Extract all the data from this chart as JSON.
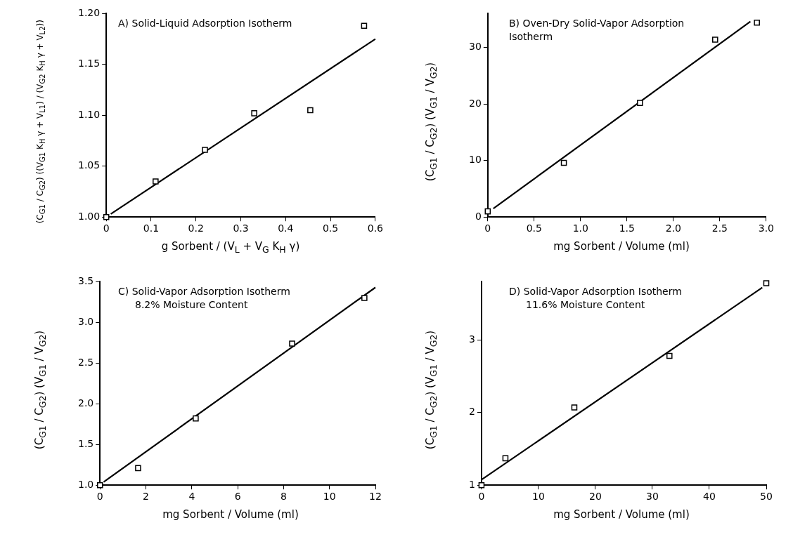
{
  "chart_data": [
    {
      "type": "scatter",
      "title": "A) Solid-Liquid Adsorption Isotherm",
      "xlabel": "g Sorbent / (V$_{L}$ + V$_{G}$ K$_{H}$ γ)",
      "ylabel": "(C$_{G1}$ / C$_{G2}$) ((V$_{G1}$ K$_{H}$ γ + V$_{L1}$) / (V$_{G2}$ K$_{H}$ γ + V$_{L2}$))",
      "xlim": [
        0,
        0.6
      ],
      "xticks": [
        0,
        0.1,
        0.2,
        0.3,
        0.4,
        0.5,
        0.6
      ],
      "ylim": [
        1,
        1.2
      ],
      "yticks": [
        {
          "value": 1,
          "label": "1.00"
        },
        {
          "value": 1.05,
          "label": "1.05"
        },
        {
          "value": 1.1,
          "label": "1.10"
        },
        {
          "value": 1.15,
          "label": "1.15"
        },
        {
          "value": 1.2,
          "label": "1.20"
        }
      ],
      "grid": false,
      "marker": "square",
      "line_style": "solid",
      "series": [
        {
          "type": "scatter",
          "color": "#000000",
          "x": [
            0,
            0.11,
            0.22,
            0.33,
            0.455,
            0.575
          ],
          "values": [
            1.0,
            1.035,
            1.066,
            1.102,
            1.105,
            1.188
          ]
        },
        {
          "type": "line",
          "color": "#000000",
          "marker": "none",
          "x": [
            0.01,
            0.6
          ],
          "values": [
            1.003,
            1.175
          ]
        }
      ]
    },
    {
      "type": "scatter",
      "title": "B) Oven-Dry Solid-Vapor Adsorption Isotherm",
      "xlabel": "mg Sorbent / Volume (ml)",
      "ylabel": "(C$_{G1}$ / C$_{G2}$) (V$_{G1}$ / V$_{G2}$)",
      "xlim": [
        0,
        3
      ],
      "xticks": [
        0,
        0.5,
        {
          "value": 1,
          "label": "1.0"
        },
        1.5,
        {
          "value": 2,
          "label": "2.0"
        },
        2.5,
        {
          "value": 3,
          "label": "3.0"
        }
      ],
      "ylim": [
        0,
        36
      ],
      "yticks": [
        0,
        10,
        20,
        30
      ],
      "grid": false,
      "marker": "square",
      "line_style": "solid",
      "series": [
        {
          "type": "scatter",
          "color": "#000000",
          "x": [
            0,
            0.82,
            1.64,
            2.45,
            2.9
          ],
          "values": [
            1,
            9.6,
            20.2,
            31.4,
            34.4
          ]
        },
        {
          "type": "line",
          "color": "#000000",
          "marker": "none",
          "x": [
            0.06,
            2.83
          ],
          "values": [
            1.5,
            34.6
          ]
        }
      ]
    },
    {
      "type": "scatter",
      "title": "C) Solid-Vapor Adsorption Isotherm",
      "subtitle": "8.2% Moisture Content",
      "xlabel": "mg Sorbent / Volume (ml)",
      "ylabel": "(C$_{G1}$ / C$_{G2}$) (V$_{G1}$ / V$_{G2}$)",
      "xlim": [
        0,
        12
      ],
      "xticks": [
        0,
        2,
        4,
        6,
        8,
        10,
        12
      ],
      "ylim": [
        1,
        3.5
      ],
      "yticks": [
        {
          "value": 1,
          "label": "1.0"
        },
        1.5,
        {
          "value": 2,
          "label": "2.0"
        },
        2.5,
        {
          "value": 3,
          "label": "3.0"
        },
        3.5
      ],
      "grid": false,
      "marker": "square",
      "line_style": "solid",
      "series": [
        {
          "type": "scatter",
          "color": "#000000",
          "x": [
            0,
            1.66,
            4.17,
            8.37,
            11.52
          ],
          "values": [
            1.0,
            1.21,
            1.82,
            2.74,
            3.3
          ]
        },
        {
          "type": "line",
          "color": "#000000",
          "marker": "none",
          "x": [
            0.16,
            12
          ],
          "values": [
            1.04,
            3.43
          ]
        }
      ]
    },
    {
      "type": "scatter",
      "title": "D) Solid-Vapor Adsorption Isotherm",
      "subtitle": "11.6% Moisture Content",
      "xlabel": "mg Sorbent / Volume (ml)",
      "ylabel": "(C$_{G1}$ / C$_{G2}$) (V$_{G1}$ / V$_{G2}$)",
      "xlim": [
        0,
        50
      ],
      "xticks": [
        0,
        10,
        20,
        30,
        40,
        50
      ],
      "ylim": [
        1,
        3.8
      ],
      "yticks": [
        1,
        2,
        3
      ],
      "grid": false,
      "marker": "square",
      "line_style": "solid",
      "series": [
        {
          "type": "scatter",
          "color": "#000000",
          "x": [
            0,
            4.2,
            16.3,
            33.0,
            50
          ],
          "values": [
            1.0,
            1.37,
            2.07,
            2.78,
            3.78
          ]
        },
        {
          "type": "line",
          "color": "#000000",
          "marker": "none",
          "x": [
            0.1,
            49.3
          ],
          "values": [
            1.08,
            3.72
          ]
        }
      ]
    }
  ]
}
